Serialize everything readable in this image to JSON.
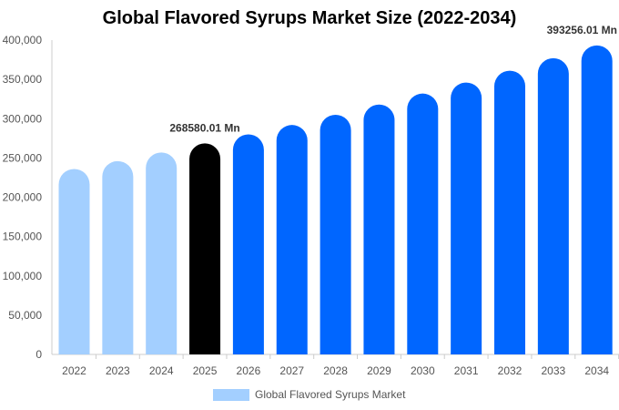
{
  "chart_data": {
    "type": "bar",
    "title": "Global Flavored Syrups Market Size (2022-2034)",
    "categories": [
      "2022",
      "2023",
      "2024",
      "2025",
      "2026",
      "2027",
      "2028",
      "2029",
      "2030",
      "2031",
      "2032",
      "2033",
      "2034"
    ],
    "series": [
      {
        "name": "Global Flavored Syrups Market",
        "values": [
          236000,
          246000,
          257000,
          268580.01,
          280000,
          292000,
          305000,
          318000,
          332000,
          346000,
          361000,
          377000,
          393256.01
        ]
      }
    ],
    "ylim": [
      0,
      400000
    ],
    "yticks": [
      "0",
      "50,000",
      "100,000",
      "150,000",
      "200,000",
      "250,000",
      "300,000",
      "350,000",
      "400,000"
    ],
    "ytick_values": [
      0,
      50000,
      100000,
      150000,
      200000,
      250000,
      300000,
      350000,
      400000
    ],
    "annotations": [
      {
        "category": "2025",
        "text": "268580.01 Mn"
      },
      {
        "category": "2034",
        "text": "393256.01 Mn"
      }
    ],
    "colors": {
      "historical": "#a3cfff",
      "current": "#000000",
      "forecast": "#0066ff",
      "legend": "#a3cfff"
    },
    "legend_position": "bottom-center",
    "grid": false
  }
}
